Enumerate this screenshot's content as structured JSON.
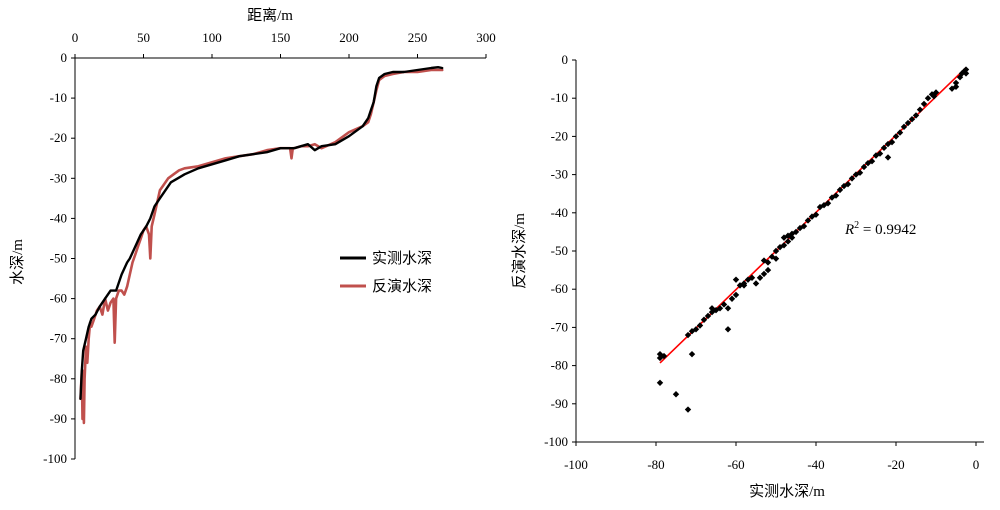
{
  "chart_data": [
    {
      "type": "line",
      "xlabel": "距离/m",
      "ylabel": "水深/m",
      "xlim": [
        0,
        300
      ],
      "ylim": [
        -100,
        0
      ],
      "x_ticks": [
        "0",
        "50",
        "100",
        "150",
        "200",
        "250",
        "300"
      ],
      "y_ticks": [
        "0",
        "-10",
        "-20",
        "-30",
        "-40",
        "-50",
        "-60",
        "-70",
        "-80",
        "-90",
        "-100"
      ],
      "x_axis_position": "top",
      "legend": "right",
      "series": [
        {
          "name": "实测水深",
          "color": "#000000",
          "x": [
            4,
            5,
            6,
            8,
            10,
            12,
            15,
            18,
            22,
            26,
            30,
            34,
            38,
            40,
            44,
            48,
            52,
            55,
            58,
            62,
            66,
            70,
            75,
            80,
            90,
            100,
            110,
            120,
            130,
            140,
            150,
            160,
            165,
            170,
            175,
            180,
            190,
            200,
            210,
            214,
            216,
            218,
            220,
            222,
            226,
            232,
            240,
            250,
            260,
            265,
            268
          ],
          "y": [
            -85,
            -78,
            -73,
            -70,
            -67,
            -65,
            -64,
            -62,
            -60,
            -58,
            -58,
            -54,
            -51,
            -50,
            -47,
            -44,
            -42,
            -40,
            -37,
            -35,
            -33,
            -31,
            -30,
            -29,
            -27.5,
            -26.5,
            -25.5,
            -24.5,
            -24,
            -23.5,
            -22.5,
            -22.5,
            -22,
            -21.5,
            -23,
            -22,
            -21.5,
            -19.5,
            -17,
            -15,
            -13,
            -11,
            -7,
            -5,
            -4,
            -3.5,
            -3.5,
            -3,
            -2.5,
            -2.3,
            -2.5
          ]
        },
        {
          "name": "反演水深",
          "color": "#c0504d",
          "x": [
            4,
            5,
            5.5,
            6,
            6.5,
            7,
            8,
            9,
            10,
            11,
            12,
            14,
            16,
            18,
            20,
            22,
            24,
            26,
            28,
            29,
            30,
            32,
            34,
            36,
            38,
            40,
            42,
            44,
            46,
            48,
            50,
            52,
            54,
            55,
            56,
            58,
            60,
            62,
            64,
            68,
            72,
            76,
            80,
            90,
            100,
            110,
            120,
            130,
            140,
            150,
            157,
            158,
            159,
            160,
            165,
            170,
            175,
            180,
            190,
            200,
            210,
            214,
            216,
            218,
            220,
            222,
            226,
            232,
            240,
            250,
            260,
            265,
            268
          ],
          "y": [
            -85,
            -78,
            -90,
            -78,
            -91,
            -80,
            -72,
            -76,
            -70,
            -66,
            -67,
            -65,
            -63,
            -62,
            -64,
            -60,
            -63,
            -61,
            -60,
            -71,
            -60,
            -58,
            -58,
            -59,
            -57,
            -54,
            -51,
            -49,
            -47,
            -45,
            -43,
            -42,
            -44,
            -50,
            -42,
            -39,
            -36,
            -33,
            -32,
            -30,
            -29,
            -28,
            -27.5,
            -27,
            -26,
            -25,
            -24.5,
            -24,
            -23,
            -22.5,
            -22.5,
            -25,
            -22.5,
            -22.5,
            -22,
            -22,
            -21.5,
            -22.5,
            -21,
            -18.5,
            -17,
            -16,
            -14,
            -11,
            -8,
            -5.5,
            -4.5,
            -4,
            -3.5,
            -3.5,
            -3,
            -3,
            -3
          ]
        }
      ]
    },
    {
      "type": "scatter",
      "xlabel": "实测水深/m",
      "ylabel": "反演水深/m",
      "xlim": [
        -100,
        0
      ],
      "ylim": [
        -100,
        0
      ],
      "x_ticks": [
        "-100",
        "-80",
        "-60",
        "-40",
        "-20",
        "0"
      ],
      "y_ticks": [
        "0",
        "-10",
        "-20",
        "-30",
        "-40",
        "-50",
        "-60",
        "-70",
        "-80",
        "-90",
        "-100"
      ],
      "annotation": "R",
      "annotation_sup": "2",
      "annotation_value": " = 0.9942",
      "point_color": "#000000",
      "trend_color": "#ff0000",
      "trendline": {
        "x": [
          -79,
          -2.5
        ],
        "y": [
          -79.3,
          -2
        ]
      },
      "points": [
        [
          -79,
          -77
        ],
        [
          -79,
          -78
        ],
        [
          -78,
          -77.5
        ],
        [
          -79,
          -84.5
        ],
        [
          -75,
          -87.5
        ],
        [
          -72,
          -91.5
        ],
        [
          -71,
          -77
        ],
        [
          -72,
          -72
        ],
        [
          -71,
          -71
        ],
        [
          -70,
          -70.5
        ],
        [
          -69,
          -69.5
        ],
        [
          -68,
          -68
        ],
        [
          -67,
          -67
        ],
        [
          -66,
          -66
        ],
        [
          -65,
          -65.5
        ],
        [
          -64,
          -65
        ],
        [
          -63,
          -64
        ],
        [
          -62,
          -65
        ],
        [
          -62,
          -70.5
        ],
        [
          -61,
          -62.5
        ],
        [
          -60,
          -61.5
        ],
        [
          -60,
          -57.5
        ],
        [
          -59,
          -59
        ],
        [
          -58,
          -58.5
        ],
        [
          -57,
          -57.5
        ],
        [
          -56,
          -57
        ],
        [
          -55,
          -58.5
        ],
        [
          -54,
          -57
        ],
        [
          -53,
          -56
        ],
        [
          -53,
          -52.5
        ],
        [
          -52,
          -55
        ],
        [
          -52,
          -53
        ],
        [
          -51,
          -51.5
        ],
        [
          -50,
          -52
        ],
        [
          -50,
          -50
        ],
        [
          -49,
          -49
        ],
        [
          -48,
          -48.5
        ],
        [
          -47,
          -47.5
        ],
        [
          -47,
          -46
        ],
        [
          -46,
          -46.5
        ],
        [
          -45,
          -45
        ],
        [
          -44,
          -44
        ],
        [
          -43,
          -43.5
        ],
        [
          -42,
          -42
        ],
        [
          -41,
          -41
        ],
        [
          -40,
          -40.5
        ],
        [
          -39,
          -38.5
        ],
        [
          -38,
          -38
        ],
        [
          -37,
          -37.5
        ],
        [
          -36,
          -36
        ],
        [
          -35,
          -35.5
        ],
        [
          -34,
          -34
        ],
        [
          -33,
          -33
        ],
        [
          -32,
          -32.5
        ],
        [
          -31,
          -31
        ],
        [
          -30,
          -30
        ],
        [
          -29,
          -29.5
        ],
        [
          -28,
          -28
        ],
        [
          -27,
          -27
        ],
        [
          -26,
          -26.5
        ],
        [
          -25,
          -25
        ],
        [
          -24,
          -24.5
        ],
        [
          -23,
          -23
        ],
        [
          -22,
          -25.5
        ],
        [
          -22,
          -22
        ],
        [
          -21,
          -21.5
        ],
        [
          -20,
          -20
        ],
        [
          -19,
          -19
        ],
        [
          -18,
          -17.5
        ],
        [
          -17,
          -16.5
        ],
        [
          -16,
          -15.5
        ],
        [
          -15,
          -14.5
        ],
        [
          -14,
          -13
        ],
        [
          -13,
          -11.5
        ],
        [
          -12,
          -10
        ],
        [
          -11,
          -9
        ],
        [
          -10.5,
          -9.5
        ],
        [
          -10,
          -8.5
        ],
        [
          -6,
          -7.5
        ],
        [
          -5,
          -7
        ],
        [
          -5,
          -6
        ],
        [
          -4,
          -4.5
        ],
        [
          -3.5,
          -3.5
        ],
        [
          -3,
          -3
        ],
        [
          -2.5,
          -2.5
        ],
        [
          -2.5,
          -3.5
        ],
        [
          -46,
          -45.5
        ],
        [
          -48,
          -46.5
        ],
        [
          -58,
          -59
        ],
        [
          -66,
          -65
        ]
      ]
    }
  ]
}
